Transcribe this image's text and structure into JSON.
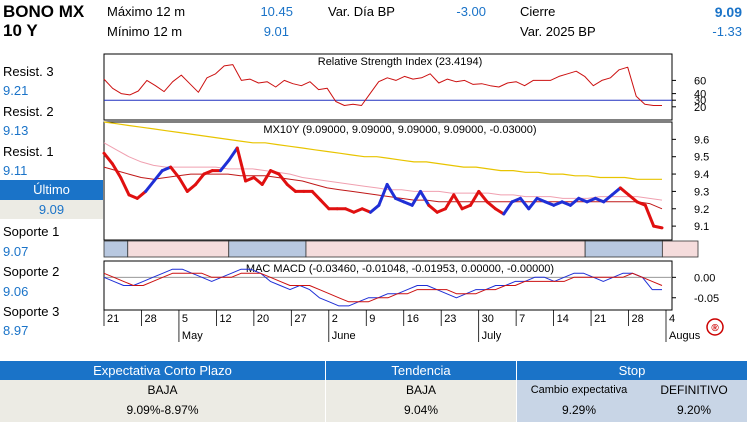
{
  "header": {
    "instrument_line1": "BONO MX",
    "instrument_line2": "10 Y",
    "max12_label": "Máximo 12 m",
    "max12_value": "10.45",
    "min12_label": "Mínimo 12 m",
    "min12_value": "9.01",
    "var_dia_label": "Var. Día BP",
    "var_dia_value": "-3.00",
    "cierre_label": "Cierre",
    "cierre_value": "9.09",
    "var_2025_label": "Var. 2025 BP",
    "var_2025_value": "-1.33"
  },
  "levels": {
    "resist3_label": "Resist. 3",
    "resist3_value": "9.21",
    "resist2_label": "Resist. 2",
    "resist2_value": "9.13",
    "resist1_label": "Resist. 1",
    "resist1_value": "9.11",
    "ultimo_label": "Último",
    "ultimo_value": "9.09",
    "soporte1_label": "Soporte 1",
    "soporte1_value": "9.07",
    "soporte2_label": "Soporte 2",
    "soporte2_value": "9.06",
    "soporte3_label": "Soporte 3",
    "soporte3_value": "8.97"
  },
  "bottom": {
    "expectativa_label": "Expectativa Corto Plazo",
    "expectativa_value": "BAJA",
    "expectativa_range": "9.09%-8.97%",
    "tendencia_label": "Tendencia",
    "tendencia_value": "BAJA",
    "tendencia_level": "9.04%",
    "stop_label": "Stop",
    "cambio_label": "Cambio expectativa",
    "cambio_value": "9.29%",
    "definitivo_label": "DEFINITIVO",
    "definitivo_value": "9.20%"
  },
  "colors": {
    "accent_blue": "#1a73c8",
    "price_up": "#1f2fd6",
    "price_down": "#e01010",
    "ma_yellow": "#e8c400",
    "ma_pink": "#f0a0b0",
    "ma_red": "#c01818"
  },
  "chart_data": [
    {
      "type": "line",
      "title": "Relative Strength Index (23.4194)",
      "ylim": [
        0,
        100
      ],
      "yticks": [
        "60",
        "40",
        "30",
        "20"
      ],
      "ytick_values": [
        60,
        40,
        30,
        20
      ],
      "reference_lines": [
        30
      ],
      "series": [
        {
          "values": [
            62,
            48,
            40,
            38,
            44,
            60,
            52,
            43,
            58,
            68,
            55,
            42,
            64,
            70,
            82,
            84,
            60,
            62,
            56,
            58,
            50,
            60,
            55,
            52,
            58,
            46,
            48,
            28,
            22,
            24,
            22,
            40,
            58,
            64,
            60,
            66,
            62,
            64,
            70,
            56,
            62,
            58,
            60,
            54,
            55,
            52,
            50,
            56,
            58,
            52,
            60,
            60,
            60,
            66,
            70,
            74,
            66,
            52,
            60,
            64,
            76,
            80,
            36,
            24,
            22,
            22
          ]
        }
      ]
    },
    {
      "type": "line",
      "title": "MX10Y (9.09000, 9.09000, 9.09000, 9.09000, -0.03000)",
      "ylim": [
        9.02,
        9.7
      ],
      "yticks": [
        "9.6",
        "9.5",
        "9.4",
        "9.3",
        "9.2",
        "9.1"
      ],
      "ytick_values": [
        9.6,
        9.5,
        9.4,
        9.3,
        9.2,
        9.1
      ],
      "price": [
        9.52,
        9.46,
        9.38,
        9.28,
        9.26,
        9.3,
        9.36,
        9.42,
        9.44,
        9.38,
        9.3,
        9.34,
        9.4,
        9.42,
        9.42,
        9.48,
        9.55,
        9.36,
        9.38,
        9.34,
        9.42,
        9.4,
        9.34,
        9.3,
        9.3,
        9.3,
        9.25,
        9.2,
        9.2,
        9.2,
        9.18,
        9.2,
        9.18,
        9.22,
        9.34,
        9.26,
        9.24,
        9.22,
        9.3,
        9.22,
        9.18,
        9.2,
        9.28,
        9.2,
        9.22,
        9.3,
        9.24,
        9.2,
        9.17,
        9.24,
        9.26,
        9.2,
        9.26,
        9.24,
        9.22,
        9.24,
        9.22,
        9.26,
        9.24,
        9.26,
        9.24,
        9.28,
        9.32,
        9.28,
        9.24,
        9.22,
        9.1,
        9.09
      ],
      "trend": [
        "down",
        "down",
        "down",
        "down",
        "down",
        "down",
        "up",
        "up",
        "up",
        "down",
        "down",
        "down",
        "down",
        "down",
        "down",
        "up",
        "up",
        "down",
        "down",
        "down",
        "down",
        "down",
        "down",
        "down",
        "down",
        "down",
        "down",
        "down",
        "down",
        "down",
        "down",
        "down",
        "down",
        "up",
        "up",
        "up",
        "up",
        "up",
        "up",
        "up",
        "down",
        "down",
        "down",
        "down",
        "down",
        "down",
        "down",
        "down",
        "down",
        "up",
        "up",
        "up",
        "up",
        "up",
        "up",
        "up",
        "up",
        "up",
        "up",
        "up",
        "up",
        "up",
        "up",
        "down",
        "down",
        "down",
        "down",
        "down"
      ],
      "series": [
        {
          "values": [
            9.7,
            9.69,
            9.68,
            9.67,
            9.66,
            9.65,
            9.64,
            9.63,
            9.62,
            9.61,
            9.6,
            9.59,
            9.58,
            9.58,
            9.57,
            9.56,
            9.55,
            9.54,
            9.53,
            9.52,
            9.51,
            9.5,
            9.5,
            9.49,
            9.48,
            9.47,
            9.47,
            9.46,
            9.45,
            9.44,
            9.44,
            9.43,
            9.42,
            9.42,
            9.41,
            9.41,
            9.4,
            9.4,
            9.39,
            9.39,
            9.38,
            9.38,
            9.38,
            9.37,
            9.37,
            9.37
          ]
        },
        {
          "values": [
            9.58,
            9.54,
            9.5,
            9.47,
            9.45,
            9.44,
            9.44,
            9.44,
            9.44,
            9.44,
            9.43,
            9.43,
            9.43,
            9.42,
            9.41,
            9.4,
            9.38,
            9.37,
            9.36,
            9.35,
            9.34,
            9.33,
            9.32,
            9.31,
            9.31,
            9.3,
            9.3,
            9.3,
            9.29,
            9.29,
            9.29,
            9.29,
            9.28,
            9.28,
            9.27,
            9.27,
            9.27,
            9.26,
            9.26,
            9.26,
            9.27,
            9.27,
            9.27,
            9.27,
            9.26,
            9.25
          ]
        },
        {
          "values": [
            9.44,
            9.42,
            9.4,
            9.38,
            9.37,
            9.38,
            9.39,
            9.4,
            9.4,
            9.4,
            9.4,
            9.39,
            9.39,
            9.39,
            9.38,
            9.37,
            9.36,
            9.34,
            9.32,
            9.31,
            9.3,
            9.29,
            9.28,
            9.27,
            9.26,
            9.25,
            9.25,
            9.24,
            9.24,
            9.24,
            9.24,
            9.24,
            9.24,
            9.24,
            9.24,
            9.24,
            9.24,
            9.24,
            9.24,
            9.24,
            9.24,
            9.24,
            9.24,
            9.24,
            9.23,
            9.2
          ]
        }
      ],
      "trend_bands": [
        {
          "trend": "up",
          "from": 0,
          "to": 0.04
        },
        {
          "trend": "down",
          "from": 0.04,
          "to": 0.21
        },
        {
          "trend": "up",
          "from": 0.21,
          "to": 0.34
        },
        {
          "trend": "down",
          "from": 0.34,
          "to": 0.81
        },
        {
          "trend": "up",
          "from": 0.81,
          "to": 0.94
        },
        {
          "trend": "down",
          "from": 0.94,
          "to": 1.0
        }
      ]
    },
    {
      "type": "line",
      "title": "MAC MACD (-0.03460, -0.01048, -0.01953, 0.00000, -0.00000)",
      "ylim": [
        -0.08,
        0.04
      ],
      "yticks": [
        "0.00",
        "-0.05"
      ],
      "ytick_values": [
        0.0,
        -0.05
      ],
      "series": [
        {
          "values": [
            0.0,
            -0.01,
            -0.02,
            -0.02,
            -0.01,
            0.0,
            0.01,
            0.02,
            0.02,
            0.01,
            0.0,
            -0.01,
            0.0,
            0.01,
            0.02,
            0.02,
            0.01,
            -0.01,
            -0.02,
            -0.03,
            -0.02,
            -0.03,
            -0.05,
            -0.06,
            -0.07,
            -0.07,
            -0.06,
            -0.05,
            -0.05,
            -0.04,
            -0.04,
            -0.03,
            -0.02,
            -0.02,
            -0.03,
            -0.04,
            -0.05,
            -0.04,
            -0.03,
            -0.03,
            -0.02,
            -0.02,
            -0.01,
            -0.01,
            0.0,
            0.0,
            -0.01,
            0.0,
            0.01,
            0.01,
            0.0,
            -0.01,
            0.0,
            0.01,
            0.01,
            0.0,
            -0.03,
            -0.03
          ]
        },
        {
          "values": [
            0.01,
            0.0,
            -0.01,
            -0.02,
            -0.02,
            -0.01,
            0.0,
            0.01,
            0.01,
            0.01,
            0.01,
            0.0,
            0.0,
            0.0,
            0.01,
            0.01,
            0.01,
            0.0,
            -0.01,
            -0.02,
            -0.02,
            -0.02,
            -0.03,
            -0.04,
            -0.05,
            -0.06,
            -0.06,
            -0.06,
            -0.05,
            -0.05,
            -0.04,
            -0.04,
            -0.03,
            -0.03,
            -0.03,
            -0.03,
            -0.04,
            -0.04,
            -0.04,
            -0.03,
            -0.03,
            -0.02,
            -0.02,
            -0.01,
            -0.01,
            -0.01,
            -0.01,
            -0.01,
            0.0,
            0.0,
            0.0,
            0.0,
            0.0,
            0.0,
            0.01,
            0.0,
            -0.01,
            -0.02
          ]
        }
      ]
    }
  ],
  "x_axis": {
    "day_ticks": [
      "21",
      "28",
      "5",
      "12",
      "20",
      "27",
      "2",
      "9",
      "16",
      "23",
      "30",
      "7",
      "14",
      "21",
      "28",
      "4"
    ],
    "month_ticks": [
      "May",
      "June",
      "July",
      "Augus"
    ]
  }
}
